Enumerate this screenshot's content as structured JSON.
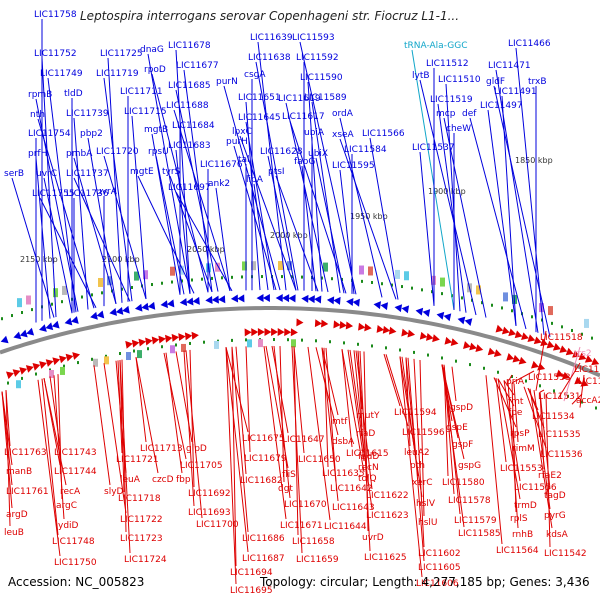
{
  "title": "Leptospira interrogans serovar Copenhageni str. Fiocruz L1-1...",
  "footer": {
    "accession": "Accession: NC_005823",
    "topology": "Topology: circular; Length: 4,277,185 bp; Genes: 3,436"
  },
  "colors": {
    "forward": "#0000dd",
    "reverse": "#dd0000",
    "trna": "#11a6c9",
    "rrna": "#f08cb4",
    "backbone": "#8a8a8a",
    "tick": "#1a8a1a"
  },
  "scale_labels": [
    "2150 kbp",
    "2100 kbp",
    "2050 kbp",
    "2000 kbp",
    "1950 kbp",
    "1900 kbp",
    "1850 kbp"
  ],
  "top_labels": [
    "LIC11758",
    "LIC11752",
    "LIC11749",
    "rpmB",
    "nth",
    "LIC11754",
    "prfH",
    "uvrC",
    "serB",
    "LIC11755",
    "tldD",
    "LIC11739",
    "pbp2",
    "pmbA",
    "LIC11737",
    "LIC11736",
    "LIC11725",
    "LIC11719",
    "dnaG",
    "rpoD",
    "LIC11711",
    "LIC11715",
    "mgtB",
    "LIC11720",
    "mgtE",
    "uvrA",
    "LIC11678",
    "LIC11677",
    "LIC11685",
    "LIC11688",
    "LIC11684",
    "LIC11683",
    "rpsU",
    "tyrS",
    "LIC11697",
    "LIC11676",
    "ank2",
    "LIC11639",
    "LIC11638",
    "purN",
    "csgA",
    "LIC11651",
    "LIC11645",
    "purH",
    "lpxC",
    "tal",
    "lipA",
    "LIC11628",
    "ptsI",
    "LIC11593",
    "LIC11592",
    "LIC11590",
    "LIC11589",
    "LIC11619",
    "LIC11617",
    "ubiA",
    "fabG",
    "ubiX",
    "ordA",
    "xseA",
    "LIC11584",
    "LIC11595",
    "LIC11566",
    "tRNA-Ala-GGC",
    "lytB",
    "LIC11512",
    "LIC11510",
    "LIC11519",
    "mcp",
    "def",
    "cheW",
    "LIC11537",
    "LIC11466",
    "LIC11471",
    "gldF",
    "trxB",
    "LIC11491",
    "LIC11497"
  ],
  "bottom_labels": [
    "LIC11763",
    "manB",
    "LIC11761",
    "argD",
    "leuB",
    "LIC11743",
    "LIC11744",
    "recA",
    "argC",
    "ydiD",
    "LIC11748",
    "LIC11750",
    "LIC11721",
    "leuA",
    "slyD",
    "czcD",
    "LIC11718",
    "LIC11713",
    "fbp",
    "LIC11722",
    "LIC11723",
    "LIC11724",
    "glpD",
    "LIC11705",
    "LIC11692",
    "LIC11693",
    "LIC11700",
    "LIC11675",
    "LIC11679",
    "LIC11682",
    "LIC11686",
    "LIC11687",
    "LIC11694",
    "LIC11695",
    "LIC11647",
    "fliS",
    "dgt",
    "LIC11650",
    "LIC11670",
    "LIC11671",
    "LIC11658",
    "LIC11659",
    "mtf",
    "dsbA",
    "LIC11635",
    "LIC11642",
    "LIC11643",
    "LIC11644",
    "rfaD",
    "fadD",
    "recN",
    "tolQ",
    "mutY",
    "LIC11615",
    "LIC11622",
    "LIC11623",
    "uvrD",
    "LIC11625",
    "LIC11594",
    "LIC11596",
    "leuA2",
    "pth",
    "xerC",
    "hslV",
    "hslU",
    "LIC11602",
    "LIC11605",
    "LIC11606",
    "gspD",
    "gspE",
    "gspF",
    "gspG",
    "LIC11580",
    "LIC11578",
    "LIC11579",
    "LIC11585",
    "priA",
    "fmt",
    "fpe",
    "rpsP",
    "rimM",
    "LIC11553",
    "LIC11556",
    "trmD",
    "rplS",
    "rnhB",
    "LIC11564",
    "LIC11533",
    "LIC11531",
    "LIC11534",
    "LIC11535",
    "LIC11536",
    "rfaE2",
    "tagD",
    "pyrG",
    "kdsA",
    "LIC11542",
    "LIC11518",
    "rrs2",
    "LIC11514",
    "LIC11516",
    "accA2"
  ]
}
